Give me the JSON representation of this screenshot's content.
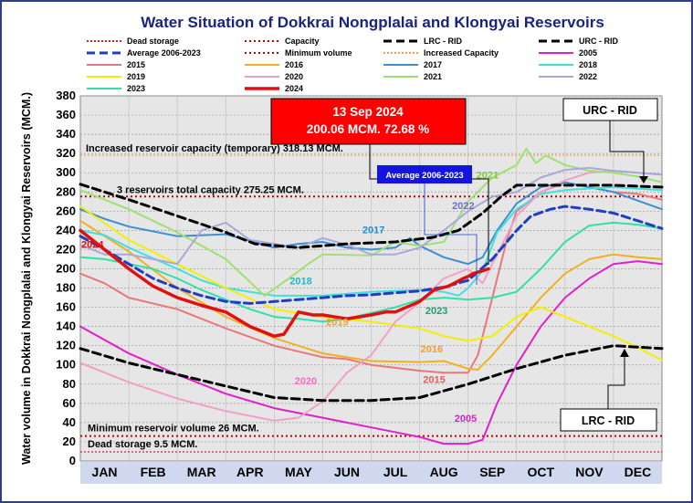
{
  "chart_data": {
    "type": "line",
    "title": "Water Situation of Dokkrai Nongplalai and Klongyai Reservoirs",
    "ylabel": "Water volume in Dokkrai Nongplalai and Klongyai Reservoirs (MCM.)",
    "ylim": [
      0,
      380
    ],
    "yticks": [
      0,
      20,
      40,
      60,
      80,
      100,
      120,
      140,
      160,
      180,
      200,
      220,
      240,
      260,
      280,
      300,
      320,
      340,
      360,
      380
    ],
    "categories": [
      "JAN",
      "FEB",
      "MAR",
      "APR",
      "MAY",
      "JUN",
      "JUL",
      "AUG",
      "SEP",
      "OCT",
      "NOV",
      "DEC"
    ],
    "grid": "horizontal",
    "legend_position": "top",
    "legend": [
      {
        "label": "Dead storage",
        "color": "#e02020",
        "style": "dotted-thin"
      },
      {
        "label": "Capacity",
        "color": "#c00000",
        "style": "dotted"
      },
      {
        "label": "LRC - RID",
        "color": "#000000",
        "style": "dashed"
      },
      {
        "label": "URC - RID",
        "color": "#000000",
        "style": "dashed"
      },
      {
        "label": "Average 2006-2023",
        "color": "#1f3fbf",
        "style": "dashed"
      },
      {
        "label": "Minimum volume",
        "color": "#c00000",
        "style": "dotted"
      },
      {
        "label": "Increased Capacity",
        "color": "#f0a040",
        "style": "dotted-thin"
      },
      {
        "label": "2005",
        "color": "#e020c8",
        "style": "solid"
      },
      {
        "label": "2015",
        "color": "#e87878",
        "style": "solid"
      },
      {
        "label": "2016",
        "color": "#f0b020",
        "style": "solid"
      },
      {
        "label": "2017",
        "color": "#3d8fd0",
        "style": "solid"
      },
      {
        "label": "2018",
        "color": "#40e0e0",
        "style": "solid"
      },
      {
        "label": "2019",
        "color": "#f0f000",
        "style": "solid"
      },
      {
        "label": "2020",
        "color": "#f0a0c8",
        "style": "solid"
      },
      {
        "label": "2021",
        "color": "#a0e070",
        "style": "solid"
      },
      {
        "label": "2022",
        "color": "#a8a8d8",
        "style": "solid"
      },
      {
        "label": "2023",
        "color": "#30e0a8",
        "style": "solid"
      },
      {
        "label": "2024",
        "color": "#e01010",
        "style": "solid-thick"
      }
    ],
    "reference_lines": [
      {
        "label": "Increased reservoir capacity (temporary)  318.13 MCM.",
        "value": 318.13,
        "color": "#f0a040"
      },
      {
        "label": "3 reservoirs total capacity 275.25 MCM.",
        "value": 275.25,
        "color": "#c00000"
      },
      {
        "label": "Minimum reservoir volume 26 MCM.",
        "value": 26,
        "color": "#c00000"
      },
      {
        "label": "Dead storage 9.5 MCM.",
        "value": 9.5,
        "color": "#e02020"
      }
    ],
    "series": [
      {
        "name": "URC - RID",
        "color": "#000000",
        "x": [
          0.0,
          1.0,
          2.0,
          3.0,
          3.6,
          4.5,
          5.5,
          6.5,
          7.3,
          7.8,
          8.3,
          8.7,
          9.0,
          10.0,
          11.0,
          12.0
        ],
        "y": [
          288,
          272,
          255,
          238,
          226,
          222,
          226,
          228,
          233,
          240,
          258,
          276,
          287,
          287,
          287,
          285
        ]
      },
      {
        "name": "LRC - RID",
        "color": "#000000",
        "x": [
          0.0,
          1.0,
          2.0,
          3.0,
          4.0,
          5.0,
          6.0,
          7.0,
          8.0,
          9.0,
          10.0,
          11.0,
          12.0
        ],
        "y": [
          117,
          102,
          90,
          78,
          66,
          63,
          63,
          66,
          80,
          96,
          110,
          120,
          117
        ]
      },
      {
        "name": "Average 2006-2023",
        "color": "#1f3fbf",
        "x": [
          0.0,
          0.5,
          1.0,
          1.5,
          2.0,
          2.5,
          3.0,
          3.5,
          4.0,
          4.5,
          5.0,
          5.5,
          6.0,
          6.5,
          7.0,
          7.5,
          8.0,
          8.5,
          9.0,
          9.3,
          9.7,
          10.0,
          10.5,
          11.0,
          11.5,
          12.0
        ],
        "y": [
          234,
          220,
          205,
          190,
          180,
          172,
          166,
          164,
          166,
          168,
          170,
          172,
          173,
          175,
          177,
          181,
          188,
          210,
          240,
          255,
          262,
          265,
          262,
          258,
          250,
          242
        ]
      },
      {
        "name": "2005",
        "color": "#e020c8",
        "x": [
          0.0,
          1.0,
          2.0,
          3.0,
          4.0,
          5.0,
          6.0,
          7.0,
          7.5,
          8.0,
          8.3,
          8.6,
          9.0,
          9.5,
          10.0,
          10.5,
          11.0,
          11.5,
          12.0
        ],
        "y": [
          140,
          112,
          90,
          70,
          55,
          45,
          35,
          25,
          18,
          18,
          22,
          60,
          100,
          140,
          170,
          190,
          205,
          208,
          205
        ]
      },
      {
        "name": "2015",
        "color": "#e87878",
        "x": [
          0.0,
          0.5,
          1.0,
          2.0,
          3.0,
          4.0,
          5.0,
          5.5,
          6.0,
          7.0,
          7.5,
          8.0,
          8.2,
          8.5,
          8.8,
          9.0,
          9.5,
          10.0,
          10.5,
          11.0,
          11.5,
          12.0
        ],
        "y": [
          195,
          185,
          170,
          158,
          138,
          120,
          108,
          106,
          100,
          94,
          92,
          92,
          110,
          170,
          230,
          260,
          280,
          290,
          285,
          280,
          278,
          272
        ]
      },
      {
        "name": "2016",
        "color": "#f0b020",
        "x": [
          0.0,
          1.0,
          2.0,
          3.0,
          4.0,
          5.0,
          6.0,
          7.0,
          7.5,
          8.0,
          8.2,
          8.5,
          9.0,
          9.5,
          10.0,
          10.5,
          11.0,
          11.5,
          12.0
        ],
        "y": [
          250,
          218,
          180,
          150,
          128,
          112,
          104,
          103,
          104,
          96,
          95,
          110,
          140,
          170,
          195,
          210,
          215,
          212,
          210
        ]
      },
      {
        "name": "2017",
        "color": "#3d8fd0",
        "x": [
          0.0,
          0.5,
          1.0,
          2.0,
          3.0,
          4.0,
          4.5,
          5.0,
          5.5,
          6.0,
          6.5,
          6.8,
          7.0,
          7.5,
          8.0,
          8.3,
          8.6,
          9.0,
          9.5,
          10.0,
          10.5,
          11.0,
          12.0
        ],
        "y": [
          262,
          252,
          244,
          234,
          236,
          222,
          226,
          228,
          222,
          220,
          222,
          232,
          224,
          212,
          205,
          212,
          240,
          268,
          285,
          290,
          285,
          280,
          262
        ]
      },
      {
        "name": "2018",
        "color": "#40e0e0",
        "x": [
          0.0,
          0.5,
          1.0,
          2.0,
          2.5,
          3.0,
          4.0,
          5.0,
          6.0,
          7.0,
          7.5,
          7.8,
          8.0,
          8.3,
          8.6,
          9.0,
          9.5,
          10.0,
          11.0,
          12.0
        ],
        "y": [
          240,
          235,
          222,
          200,
          188,
          180,
          172,
          172,
          176,
          178,
          176,
          172,
          180,
          198,
          238,
          262,
          278,
          282,
          285,
          282
        ]
      },
      {
        "name": "2019",
        "color": "#f0f000",
        "x": [
          0.0,
          1.0,
          2.0,
          3.0,
          4.0,
          5.0,
          6.0,
          7.0,
          7.5,
          8.0,
          8.5,
          9.0,
          9.5,
          10.0,
          10.5,
          11.0,
          11.5,
          12.0
        ],
        "y": [
          265,
          230,
          205,
          180,
          158,
          150,
          145,
          138,
          130,
          125,
          130,
          150,
          160,
          150,
          140,
          130,
          118,
          105
        ]
      },
      {
        "name": "2020",
        "color": "#f0a0c8",
        "x": [
          0.0,
          1.0,
          2.0,
          3.0,
          4.0,
          4.5,
          5.0,
          5.5,
          6.0,
          6.5,
          7.0,
          7.5,
          8.0,
          8.3,
          8.6,
          9.0,
          9.5,
          10.0,
          10.5,
          11.0,
          12.0
        ],
        "y": [
          102,
          82,
          65,
          52,
          42,
          45,
          62,
          92,
          110,
          145,
          165,
          190,
          200,
          185,
          215,
          255,
          280,
          292,
          300,
          302,
          298
        ]
      },
      {
        "name": "2021",
        "color": "#a0e070",
        "x": [
          0.0,
          1.0,
          2.0,
          3.0,
          3.8,
          4.3,
          4.7,
          5.0,
          6.0,
          6.5,
          7.0,
          7.5,
          8.0,
          8.5,
          9.0,
          9.2,
          9.4,
          9.6,
          10.0,
          10.5,
          11.0,
          11.5,
          12.0
        ],
        "y": [
          282,
          262,
          238,
          210,
          172,
          190,
          205,
          215,
          214,
          228,
          224,
          228,
          270,
          295,
          308,
          325,
          310,
          318,
          308,
          302,
          300,
          296,
          290
        ]
      },
      {
        "name": "2022",
        "color": "#a8a8d8",
        "x": [
          0.0,
          0.5,
          1.0,
          1.5,
          2.0,
          2.5,
          3.0,
          3.5,
          4.0,
          4.5,
          5.0,
          5.5,
          6.0,
          6.5,
          7.0,
          7.5,
          8.0,
          8.5,
          9.0,
          9.5,
          10.0,
          10.5,
          11.0,
          11.5,
          12.0
        ],
        "y": [
          225,
          215,
          215,
          210,
          205,
          240,
          248,
          230,
          226,
          222,
          232,
          225,
          215,
          215,
          222,
          240,
          260,
          275,
          280,
          295,
          303,
          305,
          302,
          300,
          298
        ]
      },
      {
        "name": "2023",
        "color": "#30e0a8",
        "x": [
          0.0,
          0.5,
          1.0,
          1.5,
          2.0,
          2.5,
          3.0,
          3.5,
          4.0,
          4.5,
          5.0,
          5.5,
          6.0,
          6.5,
          7.0,
          7.5,
          8.0,
          8.5,
          9.0,
          9.5,
          10.0,
          10.5,
          11.0,
          11.5,
          12.0
        ],
        "y": [
          212,
          210,
          205,
          200,
          190,
          178,
          168,
          158,
          150,
          148,
          145,
          148,
          154,
          160,
          168,
          170,
          168,
          170,
          176,
          200,
          228,
          245,
          248,
          246,
          242
        ]
      },
      {
        "name": "2024",
        "color": "#e01010",
        "x": [
          0.0,
          0.5,
          1.0,
          1.5,
          2.0,
          2.5,
          3.0,
          3.5,
          4.0,
          4.2,
          4.5,
          4.8,
          5.0,
          5.5,
          6.0,
          6.3,
          6.5,
          7.0,
          7.3,
          7.6,
          7.9,
          8.0,
          8.1,
          8.3,
          8.42
        ],
        "y": [
          240,
          220,
          200,
          182,
          170,
          162,
          155,
          140,
          130,
          132,
          155,
          152,
          152,
          148,
          152,
          155,
          155,
          166,
          178,
          182,
          190,
          192,
          195,
          198,
          200
        ]
      }
    ],
    "series_labels": [
      {
        "text": "2024",
        "x": 0.25,
        "y": 222,
        "color": "#e01010"
      },
      {
        "text": "2017",
        "x": 6.05,
        "y": 237,
        "color": "#1f8fd0"
      },
      {
        "text": "2018",
        "x": 4.55,
        "y": 184,
        "color": "#20b8c8"
      },
      {
        "text": "2019",
        "x": 5.3,
        "y": 141,
        "color": "#f0a030"
      },
      {
        "text": "2016",
        "x": 7.25,
        "y": 113,
        "color": "#f0a030"
      },
      {
        "text": "2015",
        "x": 7.3,
        "y": 81,
        "color": "#e06060"
      },
      {
        "text": "2020",
        "x": 4.65,
        "y": 80,
        "color": "#f070c0"
      },
      {
        "text": "2005",
        "x": 7.95,
        "y": 41,
        "color": "#e020c8"
      },
      {
        "text": "2023",
        "x": 7.35,
        "y": 153,
        "color": "#20a070"
      },
      {
        "text": "2022",
        "x": 7.9,
        "y": 262,
        "color": "#7070c0"
      },
      {
        "text": "2021",
        "x": 8.4,
        "y": 294,
        "color": "#80c840"
      }
    ],
    "callouts": {
      "current": {
        "line1": "13 Sep 2024",
        "line2": "200.06 MCM. 72.68 %"
      },
      "average": "Average 2006-2023",
      "urc": "URC - RID",
      "lrc": "LRC - RID"
    }
  }
}
